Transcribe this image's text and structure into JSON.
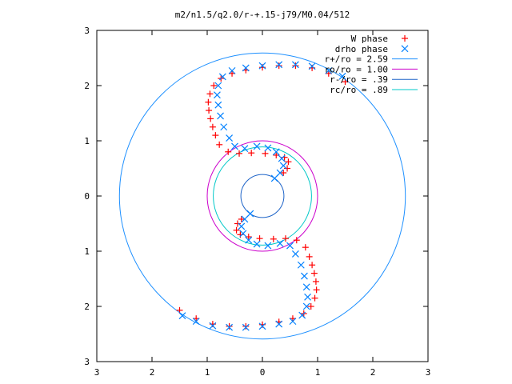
{
  "chart_data": {
    "type": "scatter",
    "title": "m2/n1.5/q2.0/r-+.15-j79/M0.04/512",
    "xlabel": "",
    "ylabel": "",
    "xlim": [
      -3,
      3
    ],
    "ylim": [
      -3,
      3
    ],
    "x_ticks": [
      -3,
      -2,
      -1,
      0,
      1,
      2,
      3
    ],
    "y_ticks": [
      -3,
      -2,
      -1,
      0,
      1,
      2,
      3
    ],
    "x_tick_labels": [
      "3",
      "2",
      "1",
      "0",
      "1",
      "2",
      "3"
    ],
    "y_tick_labels": [
      "3",
      "2",
      "1",
      "0",
      "1",
      "2",
      "3"
    ],
    "grid": false,
    "legend_position": "top-right",
    "series": [
      {
        "name": "W phase",
        "marker": "plus",
        "color": "#ff0000",
        "points": [
          [
            1.5,
            2.07
          ],
          [
            1.2,
            2.22
          ],
          [
            0.9,
            2.32
          ],
          [
            0.6,
            2.36
          ],
          [
            0.3,
            2.36
          ],
          [
            0.0,
            2.33
          ],
          [
            -0.3,
            2.28
          ],
          [
            -0.55,
            2.22
          ],
          [
            -0.75,
            2.13
          ],
          [
            -0.88,
            2.0
          ],
          [
            -0.95,
            1.85
          ],
          [
            -0.98,
            1.7
          ],
          [
            -0.97,
            1.55
          ],
          [
            -0.94,
            1.4
          ],
          [
            -0.9,
            1.25
          ],
          [
            -0.85,
            1.1
          ],
          [
            -0.78,
            0.93
          ],
          [
            -0.62,
            0.8
          ],
          [
            -0.42,
            0.77
          ],
          [
            -0.2,
            0.78
          ],
          [
            0.05,
            0.77
          ],
          [
            0.25,
            0.74
          ],
          [
            0.4,
            0.7
          ],
          [
            0.47,
            0.62
          ],
          [
            0.45,
            0.5
          ],
          [
            0.38,
            0.42
          ],
          [
            -1.5,
            -2.07
          ],
          [
            -1.2,
            -2.22
          ],
          [
            -0.9,
            -2.32
          ],
          [
            -0.6,
            -2.36
          ],
          [
            -0.3,
            -2.36
          ],
          [
            0.0,
            -2.33
          ],
          [
            0.3,
            -2.28
          ],
          [
            0.55,
            -2.22
          ],
          [
            0.75,
            -2.13
          ],
          [
            0.88,
            -2.0
          ],
          [
            0.95,
            -1.85
          ],
          [
            0.98,
            -1.7
          ],
          [
            0.97,
            -1.55
          ],
          [
            0.94,
            -1.4
          ],
          [
            0.9,
            -1.25
          ],
          [
            0.85,
            -1.1
          ],
          [
            0.78,
            -0.93
          ],
          [
            0.62,
            -0.8
          ],
          [
            0.42,
            -0.77
          ],
          [
            0.2,
            -0.78
          ],
          [
            -0.05,
            -0.77
          ],
          [
            -0.25,
            -0.74
          ],
          [
            -0.4,
            -0.7
          ],
          [
            -0.47,
            -0.62
          ],
          [
            -0.45,
            -0.5
          ],
          [
            -0.38,
            -0.42
          ]
        ]
      },
      {
        "name": "drho phase",
        "marker": "cross",
        "color": "#0080ff",
        "points": [
          [
            1.45,
            2.17
          ],
          [
            1.2,
            2.27
          ],
          [
            0.9,
            2.35
          ],
          [
            0.6,
            2.38
          ],
          [
            0.3,
            2.38
          ],
          [
            0.0,
            2.36
          ],
          [
            -0.3,
            2.32
          ],
          [
            -0.55,
            2.27
          ],
          [
            -0.72,
            2.16
          ],
          [
            -0.8,
            2.0
          ],
          [
            -0.82,
            1.83
          ],
          [
            -0.8,
            1.65
          ],
          [
            -0.76,
            1.45
          ],
          [
            -0.7,
            1.25
          ],
          [
            -0.6,
            1.05
          ],
          [
            -0.5,
            0.9
          ],
          [
            -0.32,
            0.86
          ],
          [
            -0.1,
            0.9
          ],
          [
            0.1,
            0.87
          ],
          [
            0.25,
            0.8
          ],
          [
            0.35,
            0.68
          ],
          [
            0.38,
            0.55
          ],
          [
            0.32,
            0.42
          ],
          [
            0.22,
            0.32
          ],
          [
            -1.45,
            -2.17
          ],
          [
            -1.2,
            -2.27
          ],
          [
            -0.9,
            -2.35
          ],
          [
            -0.6,
            -2.38
          ],
          [
            -0.3,
            -2.38
          ],
          [
            0.0,
            -2.36
          ],
          [
            0.3,
            -2.32
          ],
          [
            0.55,
            -2.27
          ],
          [
            0.72,
            -2.16
          ],
          [
            0.8,
            -2.0
          ],
          [
            0.82,
            -1.83
          ],
          [
            0.8,
            -1.65
          ],
          [
            0.76,
            -1.45
          ],
          [
            0.7,
            -1.25
          ],
          [
            0.6,
            -1.05
          ],
          [
            0.5,
            -0.9
          ],
          [
            0.32,
            -0.86
          ],
          [
            0.1,
            -0.9
          ],
          [
            -0.1,
            -0.87
          ],
          [
            -0.25,
            -0.8
          ],
          [
            -0.35,
            -0.68
          ],
          [
            -0.38,
            -0.55
          ],
          [
            -0.32,
            -0.42
          ],
          [
            -0.22,
            -0.32
          ]
        ]
      }
    ],
    "circles": [
      {
        "name": "r+/ro = 2.59",
        "radius": 2.59,
        "color": "#1e90ff"
      },
      {
        "name": "ro/ro = 1.00",
        "radius": 1.0,
        "color": "#cc00cc"
      },
      {
        "name": "r-/ro = .39",
        "radius": 0.39,
        "color": "#1e64c8"
      },
      {
        "name": "rc/ro = .89",
        "radius": 0.89,
        "color": "#00c8c8"
      }
    ],
    "legend": [
      {
        "label": "W phase",
        "symbol": "plus",
        "color": "#ff0000"
      },
      {
        "label": "drho phase",
        "symbol": "cross",
        "color": "#0080ff"
      },
      {
        "label": "r+/ro = 2.59",
        "symbol": "line",
        "color": "#1e90ff"
      },
      {
        "label": "ro/ro = 1.00",
        "symbol": "line",
        "color": "#cc00cc"
      },
      {
        "label": "r-/ro = .39",
        "symbol": "line",
        "color": "#1e64c8"
      },
      {
        "label": "rc/ro = .89",
        "symbol": "line",
        "color": "#00c8c8"
      }
    ]
  }
}
